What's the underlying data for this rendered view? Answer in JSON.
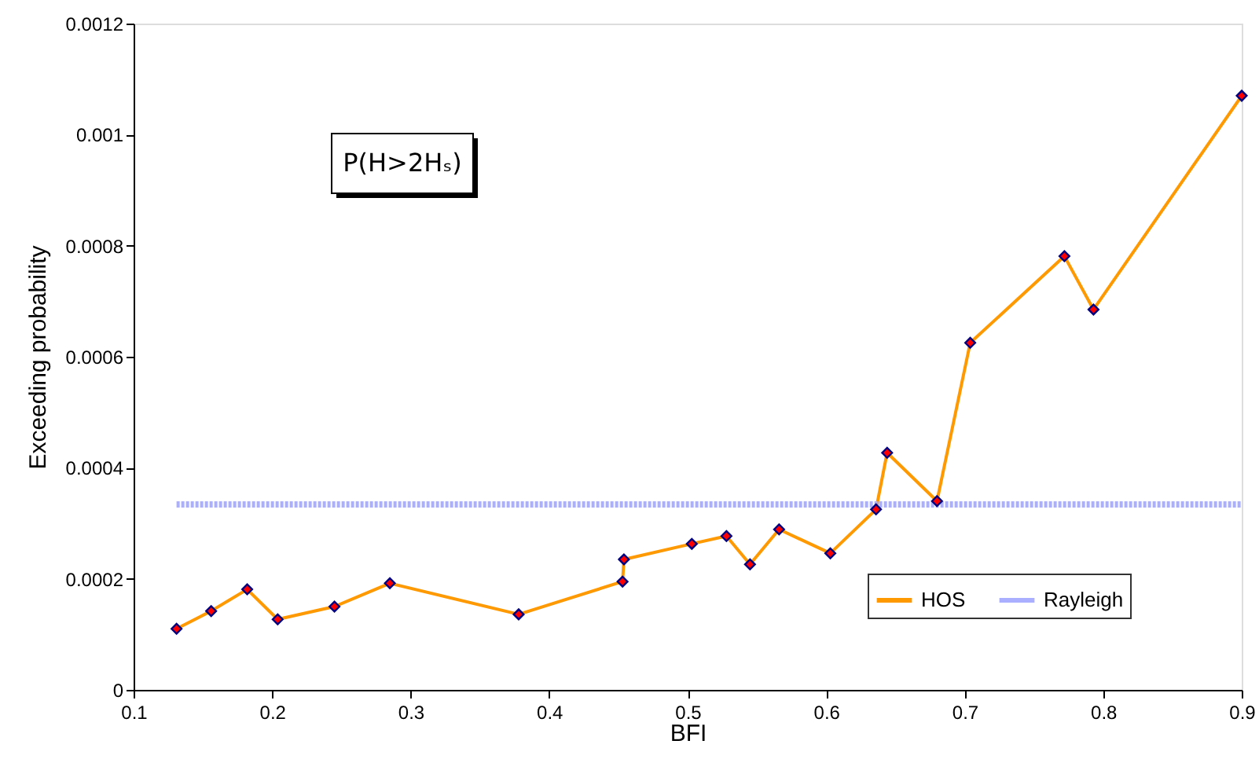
{
  "chart_data": {
    "type": "line",
    "xlabel": "BFI",
    "ylabel": "Exceeding probability",
    "annotations": [
      "P(H>2Hₛ)"
    ],
    "xlim": [
      0.1,
      0.9
    ],
    "xticks": [
      0.1,
      0.2,
      0.3,
      0.4,
      0.5,
      0.6,
      0.7,
      0.8,
      0.9
    ],
    "ylim": [
      0,
      0.0012
    ],
    "yticks": [
      0,
      0.0002,
      0.0004,
      0.0006,
      0.0008,
      0.001,
      0.0012
    ],
    "grid": false,
    "legend": "bottom right",
    "series": [
      {
        "name": "HOS",
        "color": "#ff9900",
        "marker": "diamond",
        "line_style": "solid",
        "x": [
          0.131,
          0.156,
          0.182,
          0.204,
          0.245,
          0.285,
          0.378,
          0.453,
          0.454,
          0.503,
          0.528,
          0.545,
          0.566,
          0.603,
          0.636,
          0.644,
          0.68,
          0.704,
          0.772,
          0.793,
          0.9
        ],
        "values": [
          0.00011,
          0.000142,
          0.000181,
          0.000127,
          0.00015,
          0.000192,
          0.000136,
          0.000195,
          0.000235,
          0.000263,
          0.000277,
          0.000226,
          0.000289,
          0.000246,
          0.000325,
          0.000427,
          0.00034,
          0.000625,
          0.000781,
          0.000685,
          0.00107
        ]
      },
      {
        "name": "Rayleigh",
        "color": "#aab0ff",
        "marker": "none",
        "line_style": "dotted",
        "x": [
          0.131,
          0.9
        ],
        "values": [
          0.000334,
          0.000334
        ]
      }
    ]
  }
}
